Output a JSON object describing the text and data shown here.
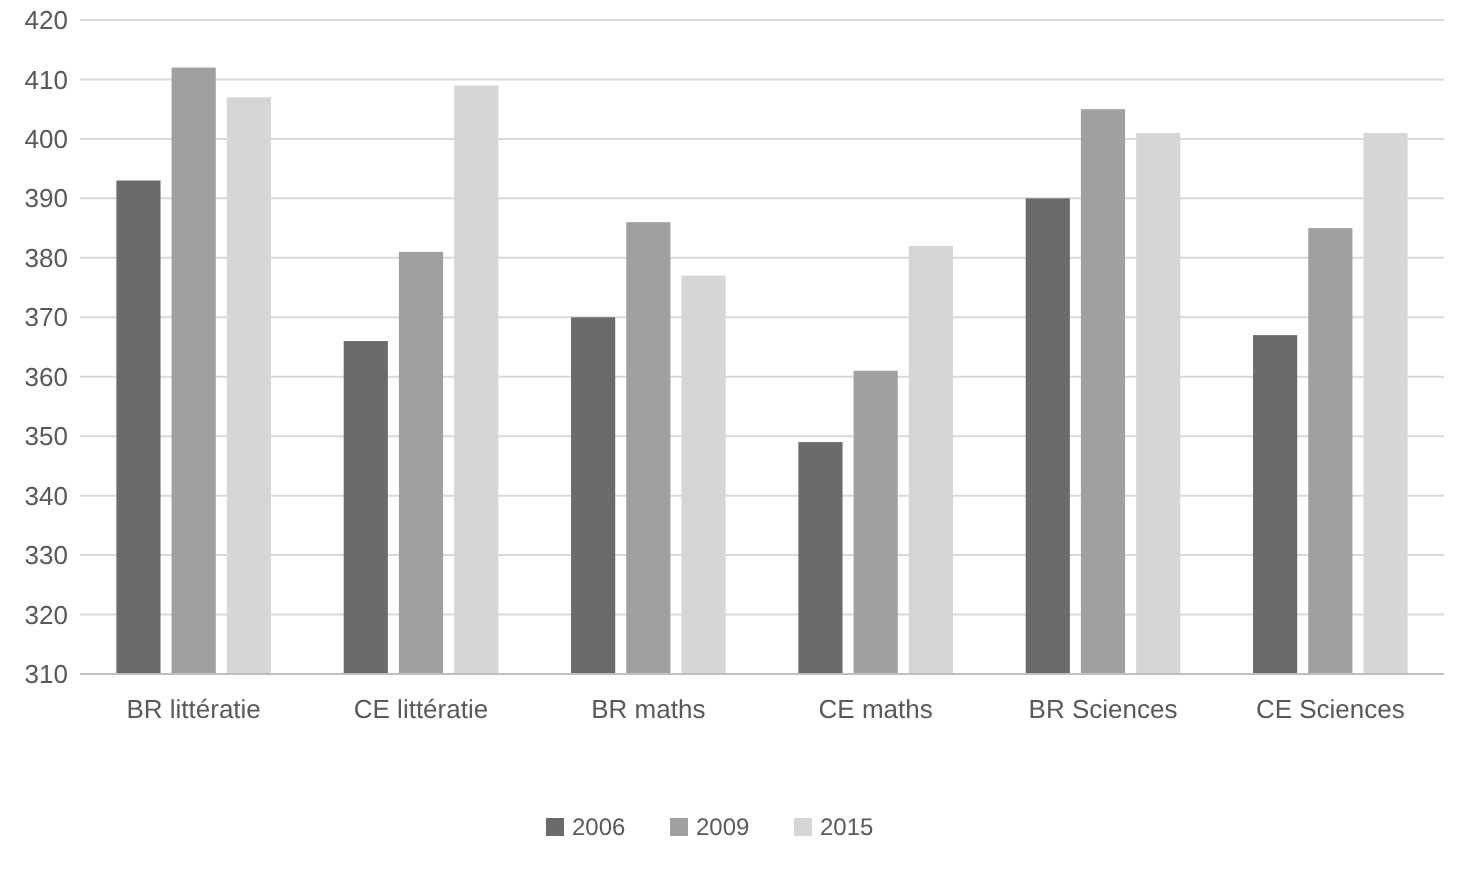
{
  "chart_data": {
    "type": "bar",
    "categories": [
      "BR littératie",
      "CE littératie",
      "BR maths",
      "CE maths",
      "BR Sciences",
      "CE Sciences"
    ],
    "series": [
      {
        "name": "2006",
        "color": "#6b6b6b",
        "values": [
          393,
          366,
          370,
          349,
          390,
          367
        ]
      },
      {
        "name": "2009",
        "color": "#a0a0a0",
        "values": [
          412,
          381,
          386,
          361,
          405,
          385
        ]
      },
      {
        "name": "2015",
        "color": "#d6d6d6",
        "values": [
          407,
          409,
          377,
          382,
          401,
          401
        ]
      }
    ],
    "ylim": [
      310,
      420
    ],
    "yticks": [
      310,
      320,
      330,
      340,
      350,
      360,
      370,
      380,
      390,
      400,
      410,
      420
    ],
    "grid": "y",
    "legend": "bottom"
  }
}
